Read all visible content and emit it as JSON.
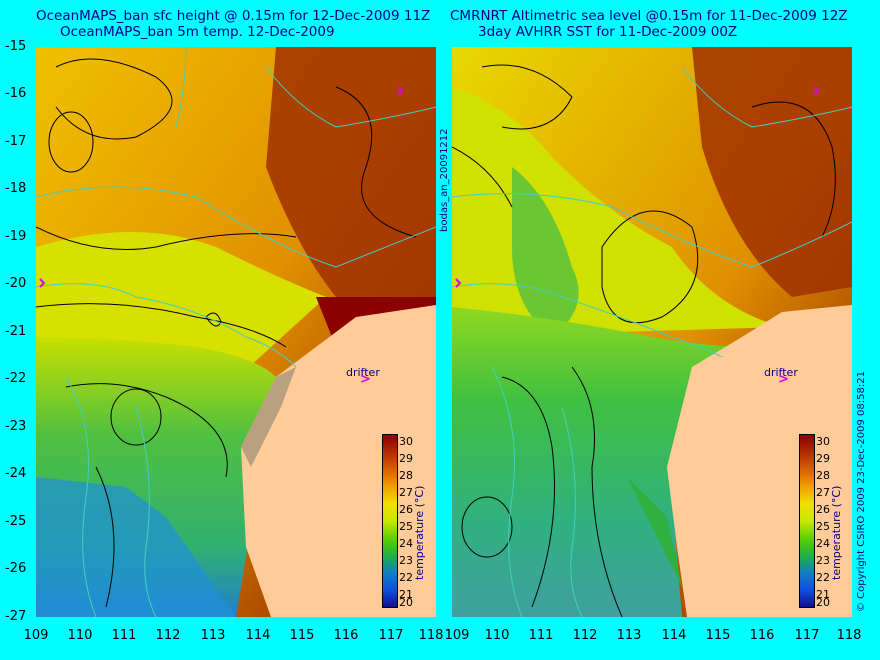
{
  "titles": {
    "left_line1": "OceanMAPS_ban sfc height @ 0.15m for 12-Dec-2009 11Z",
    "left_line2": "OceanMAPS_ban 5m temp. 12-Dec-2009",
    "right_line1": "CMRNRT Altimetric sea level  @0.15m  for 11-Dec-2009 12Z",
    "right_line2": "3day AVHRR SST for 11-Dec-2009 00Z"
  },
  "axes": {
    "y_ticks": [
      "-15",
      "-16",
      "-17",
      "-18",
      "-19",
      "-20",
      "-21",
      "-22",
      "-23",
      "-24",
      "-25",
      "-26",
      "-27"
    ],
    "x_ticks": [
      "109",
      "110",
      "111",
      "112",
      "113",
      "114",
      "115",
      "116",
      "117",
      "118"
    ]
  },
  "side_labels": {
    "center": "bodas_an_20091212",
    "right": "© Copyright CSIRO 2009   23-Dec-2009 08:58:21"
  },
  "drifter_label": "drifter",
  "drifter_symbol": ">",
  "colorbar": {
    "title": "temperature (°C)",
    "ticks": [
      "30",
      "29",
      "28",
      "27",
      "26",
      "25",
      "24",
      "23",
      "22",
      "21",
      "20"
    ],
    "colors": [
      "#8b0000",
      "#b22a00",
      "#d96000",
      "#f0a000",
      "#f0e000",
      "#c8e800",
      "#60d000",
      "#20b040",
      "#1080c0",
      "#1050e0",
      "#101090"
    ]
  },
  "colors": {
    "background": "#00ffff",
    "land": "#ffcc99",
    "contour": "#000000",
    "isobath": "#40d0c0",
    "drifter": "#e000e0"
  }
}
